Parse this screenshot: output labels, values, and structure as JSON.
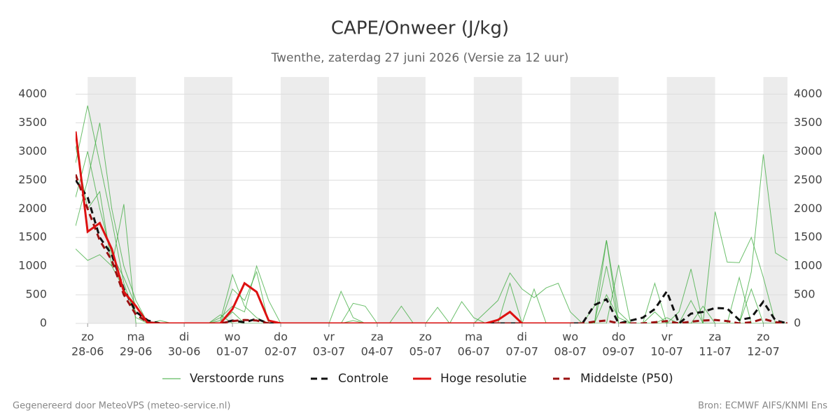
{
  "chart_data": {
    "type": "line",
    "title": "CAPE/Onweer (J/kg)",
    "subtitle": "Twenthe, zaterdag 27 juni 2026 (Versie za 12 uur)",
    "x": [
      -0.25,
      0,
      0.25,
      0.5,
      0.75,
      1,
      1.25,
      1.5,
      1.75,
      2,
      2.25,
      2.5,
      2.75,
      3,
      3.25,
      3.5,
      3.75,
      4,
      4.25,
      4.5,
      4.75,
      5,
      5.25,
      5.5,
      5.75,
      6,
      6.25,
      6.5,
      6.75,
      7,
      7.25,
      7.5,
      7.75,
      8,
      8.25,
      8.5,
      8.75,
      9,
      9.25,
      9.5,
      9.75,
      10,
      10.25,
      10.5,
      10.75,
      11,
      11.25,
      11.5,
      11.75,
      12,
      12.25,
      12.5,
      12.75,
      13,
      13.25,
      13.5,
      13.75,
      14,
      14.25,
      14.5
    ],
    "xlim": [
      -0.25,
      14.5
    ],
    "xticks": [
      {
        "value": 0,
        "label": [
          "zo",
          "28-06"
        ]
      },
      {
        "value": 1,
        "label": [
          "ma",
          "29-06"
        ]
      },
      {
        "value": 2,
        "label": [
          "di",
          "30-06"
        ]
      },
      {
        "value": 3,
        "label": [
          "wo",
          "01-07"
        ]
      },
      {
        "value": 4,
        "label": [
          "do",
          "02-07"
        ]
      },
      {
        "value": 5,
        "label": [
          "vr",
          "03-07"
        ]
      },
      {
        "value": 6,
        "label": [
          "za",
          "04-07"
        ]
      },
      {
        "value": 7,
        "label": [
          "zo",
          "05-07"
        ]
      },
      {
        "value": 8,
        "label": [
          "ma",
          "06-07"
        ]
      },
      {
        "value": 9,
        "label": [
          "di",
          "07-07"
        ]
      },
      {
        "value": 10,
        "label": [
          "wo",
          "08-07"
        ]
      },
      {
        "value": 11,
        "label": [
          "do",
          "09-07"
        ]
      },
      {
        "value": 12,
        "label": [
          "vr",
          "10-07"
        ]
      },
      {
        "value": 13,
        "label": [
          "za",
          "11-07"
        ]
      },
      {
        "value": 14,
        "label": [
          "zo",
          "12-07"
        ]
      }
    ],
    "shaded_days": [
      0,
      2,
      4,
      6,
      8,
      10,
      12,
      14
    ],
    "ylim": [
      0,
      4300
    ],
    "yticks": [
      0,
      500,
      1000,
      1500,
      2000,
      2500,
      3000,
      3500,
      4000
    ],
    "grid": true,
    "ensemble": {
      "name": "Verstoorde runs",
      "color": "#3aa93a",
      "members": [
        [
          2800,
          3800,
          2800,
          1800,
          700,
          100,
          0,
          50,
          0,
          0,
          0,
          0,
          50,
          850,
          300,
          100,
          0,
          0,
          0,
          0,
          0,
          0,
          0,
          50,
          0,
          0,
          0,
          0,
          0,
          0,
          0,
          0,
          0,
          0,
          200,
          400,
          880,
          600,
          450,
          620,
          700,
          200,
          0,
          300,
          1450,
          200,
          0,
          0,
          0,
          100,
          0,
          0,
          0,
          1950,
          1070,
          1060,
          1500,
          800,
          0,
          0
        ],
        [
          2200,
          3000,
          2000,
          1200,
          800,
          300,
          0,
          0,
          0,
          0,
          0,
          0,
          100,
          300,
          200,
          1000,
          400,
          0,
          0,
          0,
          0,
          0,
          560,
          100,
          0,
          0,
          0,
          300,
          0,
          0,
          0,
          0,
          380,
          100,
          0,
          0,
          700,
          0,
          0,
          0,
          0,
          0,
          0,
          0,
          1000,
          0,
          0,
          0,
          200,
          0,
          0,
          400,
          0,
          0,
          0,
          0,
          900,
          2950,
          1230,
          1100
        ],
        [
          1700,
          2500,
          3500,
          2000,
          1000,
          400,
          0,
          0,
          0,
          0,
          0,
          0,
          0,
          600,
          400,
          900,
          0,
          0,
          0,
          0,
          0,
          0,
          0,
          0,
          0,
          0,
          0,
          0,
          0,
          0,
          0,
          0,
          0,
          0,
          0,
          0,
          0,
          0,
          0,
          0,
          0,
          0,
          0,
          0,
          1450,
          0,
          0,
          0,
          0,
          0,
          200,
          950,
          0,
          0,
          0,
          800,
          0,
          0,
          0,
          0
        ],
        [
          1300,
          1100,
          1200,
          1000,
          2080,
          0,
          0,
          0,
          0,
          0,
          0,
          0,
          0,
          200,
          0,
          0,
          0,
          0,
          0,
          0,
          0,
          0,
          0,
          350,
          300,
          0,
          0,
          0,
          0,
          0,
          280,
          0,
          0,
          0,
          0,
          0,
          0,
          0,
          600,
          0,
          0,
          0,
          0,
          0,
          0,
          1020,
          0,
          0,
          700,
          0,
          0,
          0,
          0,
          0,
          0,
          0,
          0,
          0,
          0,
          0
        ],
        [
          3100,
          2000,
          2300,
          1000,
          600,
          200,
          0,
          0,
          0,
          0,
          0,
          0,
          150,
          0,
          0,
          0,
          0,
          0,
          0,
          0,
          0,
          0,
          0,
          0,
          0,
          0,
          0,
          0,
          0,
          0,
          0,
          0,
          0,
          0,
          0,
          0,
          0,
          0,
          0,
          0,
          0,
          0,
          0,
          0,
          500,
          100,
          0,
          0,
          0,
          0,
          0,
          0,
          300,
          0,
          0,
          0,
          600,
          0,
          0,
          0
        ]
      ]
    },
    "series": [
      {
        "name": "Controle",
        "color": "#111111",
        "dash": true,
        "values": [
          2500,
          2200,
          1500,
          1200,
          600,
          200,
          50,
          0,
          0,
          0,
          0,
          0,
          0,
          50,
          20,
          80,
          0,
          0,
          0,
          0,
          0,
          0,
          0,
          0,
          0,
          0,
          0,
          0,
          0,
          0,
          0,
          0,
          0,
          0,
          0,
          0,
          0,
          0,
          0,
          0,
          0,
          0,
          0,
          320,
          420,
          0,
          50,
          100,
          250,
          560,
          0,
          170,
          200,
          270,
          260,
          60,
          100,
          380,
          50,
          0
        ]
      },
      {
        "name": "Hoge resolutie",
        "color": "#dd1111",
        "dash": false,
        "values": [
          3350,
          1600,
          1750,
          1300,
          550,
          300,
          0,
          0,
          0,
          0,
          0,
          0,
          0,
          250,
          700,
          550,
          50,
          0,
          0,
          0,
          0,
          0,
          0,
          0,
          0,
          0,
          0,
          0,
          0,
          0,
          0,
          0,
          0,
          0,
          0,
          60,
          200,
          0,
          0,
          0,
          0,
          0,
          null,
          null,
          null,
          null,
          null,
          null,
          null,
          null,
          null,
          null,
          null,
          null,
          null,
          null,
          null,
          null,
          null,
          null
        ]
      },
      {
        "name": "Middelste (P50)",
        "color": "#9b1111",
        "dash": true,
        "values": [
          2600,
          2000,
          1450,
          1100,
          500,
          150,
          20,
          0,
          0,
          0,
          0,
          0,
          0,
          40,
          60,
          50,
          0,
          0,
          0,
          0,
          0,
          0,
          0,
          0,
          0,
          0,
          0,
          0,
          0,
          0,
          0,
          0,
          0,
          0,
          0,
          0,
          0,
          0,
          0,
          0,
          0,
          0,
          0,
          30,
          50,
          0,
          0,
          0,
          20,
          40,
          0,
          30,
          50,
          60,
          40,
          0,
          20,
          80,
          20,
          0
        ]
      }
    ]
  },
  "footer": {
    "left": "Gegenereerd door MeteoVPS (meteo-service.nl)",
    "right": "Bron: ECMWF AIFS/KNMI Ens"
  }
}
